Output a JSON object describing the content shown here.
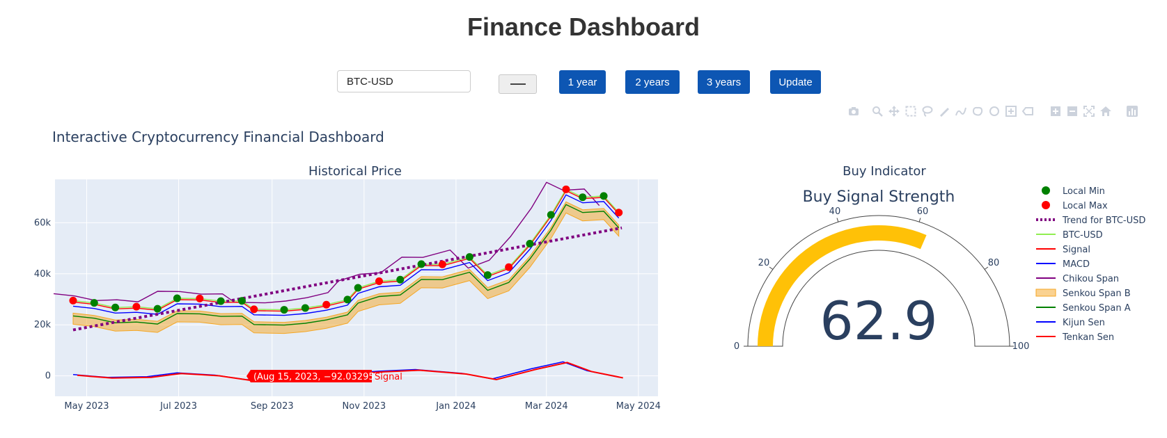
{
  "page": {
    "title": "Finance Dashboard"
  },
  "controls": {
    "ticker_value": "BTC-USD",
    "btn_1y": "1 year",
    "btn_2y": "2 years",
    "btn_3y": "3 years",
    "btn_update": "Update"
  },
  "modebar": {
    "icons": [
      "camera-icon",
      "zoom-icon",
      "pan-icon",
      "box-select-icon",
      "lasso-select-icon",
      "draw-line-icon",
      "draw-freeform-icon",
      "draw-closed-freeform-icon",
      "draw-circle-icon",
      "draw-rect-icon",
      "erase-shape-icon",
      "zoom-in-icon",
      "zoom-out-icon",
      "autoscale-icon",
      "reset-axes-icon",
      "plotly-logo-icon"
    ]
  },
  "figure": {
    "title": "Interactive Cryptocurrency Financial Dashboard"
  },
  "chart_data": [
    {
      "type": "line",
      "title": "Historical Price",
      "xlabel": "",
      "ylabel": "",
      "x_range": [
        "2023-04-10",
        "2024-05-14"
      ],
      "x_ticks": [
        "May 2023",
        "Jul 2023",
        "Sep 2023",
        "Nov 2023",
        "Jan 2024",
        "Mar 2024",
        "May 2024"
      ],
      "x_tick_dates": [
        "2023-05-01",
        "2023-07-01",
        "2023-09-01",
        "2023-11-01",
        "2024-01-01",
        "2024-03-01",
        "2024-05-01"
      ],
      "ylim": [
        -8000,
        77000
      ],
      "y_ticks": [
        "0",
        "20k",
        "40k",
        "60k"
      ],
      "y_tick_values": [
        0,
        20000,
        40000,
        60000
      ],
      "grid": true,
      "background": "#e5ecf6",
      "legend_position": "right",
      "series_points": [
        {
          "date": "2023-04-22",
          "price": 29500
        },
        {
          "date": "2023-05-06",
          "price": 28600
        },
        {
          "date": "2023-05-20",
          "price": 26800
        },
        {
          "date": "2023-06-03",
          "price": 27100
        },
        {
          "date": "2023-06-17",
          "price": 26300
        },
        {
          "date": "2023-06-30",
          "price": 30400
        },
        {
          "date": "2023-07-15",
          "price": 30300
        },
        {
          "date": "2023-07-29",
          "price": 29300
        },
        {
          "date": "2023-08-12",
          "price": 29400
        },
        {
          "date": "2023-08-20",
          "price": 26100
        },
        {
          "date": "2023-09-09",
          "price": 25900
        },
        {
          "date": "2023-09-23",
          "price": 26600
        },
        {
          "date": "2023-10-07",
          "price": 27900
        },
        {
          "date": "2023-10-21",
          "price": 29900
        },
        {
          "date": "2023-10-28",
          "price": 34500
        },
        {
          "date": "2023-11-11",
          "price": 37100
        },
        {
          "date": "2023-11-25",
          "price": 37700
        },
        {
          "date": "2023-12-09",
          "price": 43800
        },
        {
          "date": "2023-12-23",
          "price": 43700
        },
        {
          "date": "2024-01-10",
          "price": 46600
        },
        {
          "date": "2024-01-22",
          "price": 39500
        },
        {
          "date": "2024-02-05",
          "price": 42600
        },
        {
          "date": "2024-02-19",
          "price": 51800
        },
        {
          "date": "2024-03-04",
          "price": 63100
        },
        {
          "date": "2024-03-14",
          "price": 73100
        },
        {
          "date": "2024-03-25",
          "price": 70000
        },
        {
          "date": "2024-04-08",
          "price": 70500
        },
        {
          "date": "2024-04-18",
          "price": 64000
        }
      ],
      "series": [
        {
          "name": "Local Min",
          "color": "#008000",
          "style": "markers"
        },
        {
          "name": "Local Max",
          "color": "#ff0000",
          "style": "markers"
        },
        {
          "name": "Trend for BTC-USD",
          "color": "#800080",
          "style": "dotted",
          "start": {
            "date": "2023-04-22",
            "value": 18000
          },
          "end": {
            "date": "2024-04-20",
            "value": 58000
          }
        },
        {
          "name": "BTC-USD",
          "color": "#90ee50",
          "style": "line"
        },
        {
          "name": "Signal",
          "color": "#ff0000",
          "style": "line"
        },
        {
          "name": "MACD",
          "color": "#0000ff",
          "style": "line"
        },
        {
          "name": "Chikou Span",
          "color": "#800080",
          "style": "line"
        },
        {
          "name": "Senkou Span B",
          "color": "#f5a623",
          "style": "fill"
        },
        {
          "name": "Senkou Span A",
          "color": "#008000",
          "style": "line"
        },
        {
          "name": "Kijun Sen",
          "color": "#0000ff",
          "style": "line"
        },
        {
          "name": "Tenkan Sen",
          "color": "#ff0000",
          "style": "line"
        }
      ],
      "macd_points": [
        {
          "date": "2023-04-22",
          "value": 500
        },
        {
          "date": "2023-05-15",
          "value": -600
        },
        {
          "date": "2023-06-10",
          "value": -300
        },
        {
          "date": "2023-06-30",
          "value": 1200
        },
        {
          "date": "2023-07-25",
          "value": 300
        },
        {
          "date": "2023-08-15",
          "value": -1500
        },
        {
          "date": "2023-09-15",
          "value": -300
        },
        {
          "date": "2023-10-15",
          "value": 800
        },
        {
          "date": "2023-11-10",
          "value": 1800
        },
        {
          "date": "2023-12-05",
          "value": 2500
        },
        {
          "date": "2024-01-05",
          "value": 1000
        },
        {
          "date": "2024-01-25",
          "value": -1200
        },
        {
          "date": "2024-02-20",
          "value": 2800
        },
        {
          "date": "2024-03-12",
          "value": 5500
        },
        {
          "date": "2024-03-28",
          "value": 2000
        },
        {
          "date": "2024-04-18",
          "value": -500
        }
      ],
      "hover": {
        "text": "(Aug 15, 2023, −92.03295)",
        "label": "Signal",
        "date": "2023-08-15",
        "value": -92.03295
      }
    },
    {
      "type": "gauge",
      "title": "Buy Indicator",
      "gauge_title": "Buy Signal Strength",
      "value": 62.9,
      "value_text": "62.9",
      "range": [
        0,
        100
      ],
      "ticks": [
        "0",
        "20",
        "40",
        "60",
        "80",
        "100"
      ],
      "tick_values": [
        0,
        20,
        40,
        60,
        80,
        100
      ],
      "bar_color": "#ffc107"
    }
  ]
}
